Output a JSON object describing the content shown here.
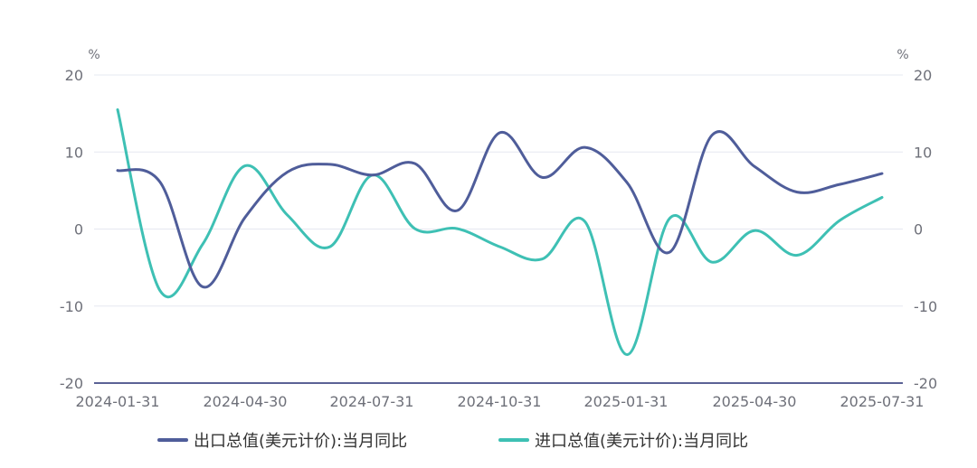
{
  "chart_data": {
    "type": "line",
    "unit_left": "%",
    "unit_right": "%",
    "ylim": [
      -20,
      20
    ],
    "yticks": [
      "20",
      "10",
      "0",
      "-10",
      "-20"
    ],
    "x_tick_labels": [
      "2024-01-31",
      "2024-04-30",
      "2024-07-31",
      "2024-10-31",
      "2025-01-31",
      "2025-04-30",
      "2025-07-31"
    ],
    "x": [
      "2024-01-31",
      "2024-02-29",
      "2024-03-31",
      "2024-04-30",
      "2024-05-31",
      "2024-06-30",
      "2024-07-31",
      "2024-08-31",
      "2024-09-30",
      "2024-10-31",
      "2024-11-30",
      "2024-12-31",
      "2025-01-31",
      "2025-02-28",
      "2025-03-31",
      "2025-04-30",
      "2025-05-31",
      "2025-06-30",
      "2025-07-31"
    ],
    "series": [
      {
        "name": "出口总值(美元计价):当月同比",
        "color": "#4f5d9a",
        "values": [
          7.6,
          6.1,
          -7.5,
          1.5,
          7.4,
          8.4,
          7.0,
          8.5,
          2.4,
          12.5,
          6.7,
          10.6,
          6.0,
          -3.0,
          12.2,
          8.1,
          4.8,
          5.8,
          7.2
        ]
      },
      {
        "name": "进口总值(美元计价):当月同比",
        "color": "#3ec0b4",
        "values": [
          15.5,
          -8.0,
          -2.0,
          8.2,
          1.8,
          -2.3,
          7.0,
          0.05,
          0.05,
          -2.3,
          -3.9,
          1.0,
          -16.3,
          1.4,
          -4.3,
          -0.2,
          -3.4,
          1.1,
          4.1
        ]
      }
    ],
    "grid": true,
    "legend_position": "bottom"
  }
}
